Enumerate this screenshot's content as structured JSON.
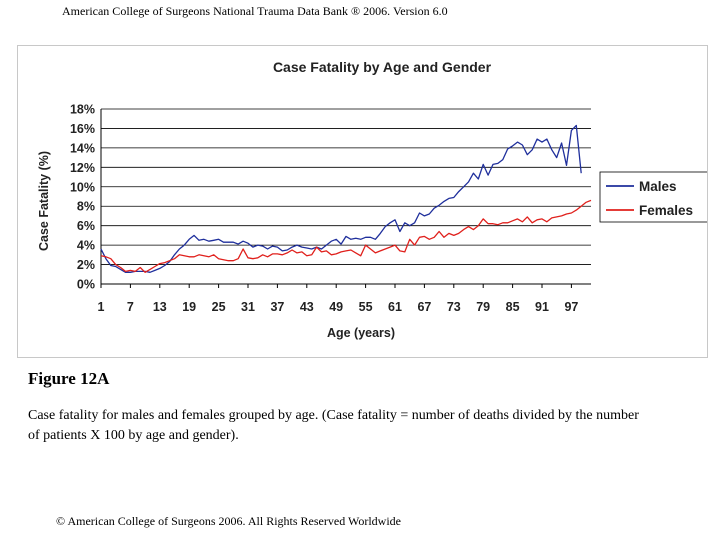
{
  "header": {
    "text": "American College of Surgeons National Trauma Data Bank ® 2006. Version 6.0"
  },
  "figure": {
    "title": "Figure 12A",
    "caption": "Case fatality for males and females grouped by age. (Case fatality = number of deaths divided by the number of patients X 100 by age and gender)."
  },
  "footer": {
    "text": "© American College of Surgeons 2006. All Rights Reserved Worldwide"
  },
  "colors": {
    "males": "#1f2f9c",
    "females": "#e0201c",
    "grid": "#000000"
  },
  "chart_data": {
    "type": "line",
    "title": "Case Fatality by Age and Gender",
    "xlabel": "Age (years)",
    "ylabel": "Case Fatality (%)",
    "ylim": [
      0,
      18
    ],
    "yticks": [
      0,
      2,
      4,
      6,
      8,
      10,
      12,
      14,
      16,
      18
    ],
    "ytick_labels": [
      "0%",
      "2%",
      "4%",
      "6%",
      "8%",
      "10%",
      "12%",
      "14%",
      "16%",
      "18%"
    ],
    "xlim": [
      1,
      101
    ],
    "xticks": [
      1,
      7,
      13,
      19,
      25,
      31,
      37,
      43,
      49,
      55,
      61,
      67,
      73,
      79,
      85,
      91,
      97
    ],
    "grid": "horizontal",
    "legend_position": "right",
    "series": [
      {
        "name": "Males",
        "x": [
          1,
          2,
          3,
          4,
          5,
          6,
          7,
          8,
          9,
          10,
          11,
          12,
          13,
          14,
          15,
          16,
          17,
          18,
          19,
          20,
          21,
          22,
          23,
          24,
          25,
          26,
          27,
          28,
          29,
          30,
          31,
          32,
          33,
          34,
          35,
          36,
          37,
          38,
          39,
          40,
          41,
          42,
          43,
          44,
          45,
          46,
          47,
          48,
          49,
          50,
          51,
          52,
          53,
          54,
          55,
          56,
          57,
          58,
          59,
          60,
          61,
          62,
          63,
          64,
          65,
          66,
          67,
          68,
          69,
          70,
          71,
          72,
          73,
          74,
          75,
          76,
          77,
          78,
          79,
          80,
          81,
          82,
          83,
          84,
          85,
          86,
          87,
          88,
          89,
          90,
          91,
          92,
          93,
          94,
          95,
          96,
          97,
          98,
          99
        ],
        "values": [
          3.6,
          2.6,
          1.9,
          1.8,
          1.5,
          1.2,
          1.2,
          1.3,
          1.3,
          1.3,
          1.2,
          1.4,
          1.6,
          1.9,
          2.3,
          3.0,
          3.6,
          4.0,
          4.6,
          5.0,
          4.5,
          4.6,
          4.4,
          4.5,
          4.6,
          4.3,
          4.3,
          4.3,
          4.1,
          4.4,
          4.2,
          3.8,
          4.0,
          3.9,
          3.6,
          3.9,
          3.8,
          3.4,
          3.5,
          3.8,
          4.0,
          3.8,
          3.7,
          3.6,
          3.8,
          3.6,
          4.0,
          4.4,
          4.6,
          4.1,
          4.9,
          4.6,
          4.7,
          4.6,
          4.8,
          4.8,
          4.6,
          5.2,
          5.9,
          6.3,
          6.6,
          5.4,
          6.3,
          6.0,
          6.3,
          7.3,
          7.0,
          7.2,
          7.8,
          8.1,
          8.5,
          8.8,
          8.9,
          9.5,
          10.0,
          10.5,
          11.4,
          10.8,
          12.3,
          11.2,
          12.3,
          12.4,
          12.8,
          13.9,
          14.2,
          14.6,
          14.3,
          13.3,
          13.8,
          14.9,
          14.6,
          14.9,
          13.8,
          13.0,
          14.5,
          12.2,
          15.8,
          16.3,
          11.4
        ]
      },
      {
        "name": "Females",
        "x": [
          1,
          2,
          3,
          4,
          5,
          6,
          7,
          8,
          9,
          10,
          11,
          12,
          13,
          14,
          15,
          16,
          17,
          18,
          19,
          20,
          21,
          22,
          23,
          24,
          25,
          26,
          27,
          28,
          29,
          30,
          31,
          32,
          33,
          34,
          35,
          36,
          37,
          38,
          39,
          40,
          41,
          42,
          43,
          44,
          45,
          46,
          47,
          48,
          49,
          50,
          51,
          52,
          53,
          54,
          55,
          56,
          57,
          58,
          59,
          60,
          61,
          62,
          63,
          64,
          65,
          66,
          67,
          68,
          69,
          70,
          71,
          72,
          73,
          74,
          75,
          76,
          77,
          78,
          79,
          80,
          81,
          82,
          83,
          84,
          85,
          86,
          87,
          88,
          89,
          90,
          91,
          92,
          93,
          94,
          95,
          96,
          97,
          98,
          99,
          100,
          101
        ],
        "values": [
          2.9,
          2.8,
          2.6,
          2.0,
          1.7,
          1.3,
          1.4,
          1.3,
          1.7,
          1.2,
          1.5,
          1.8,
          2.1,
          2.2,
          2.4,
          2.6,
          3.0,
          2.9,
          2.8,
          2.8,
          3.0,
          2.9,
          2.8,
          3.0,
          2.6,
          2.5,
          2.4,
          2.4,
          2.6,
          3.6,
          2.7,
          2.6,
          2.7,
          3.0,
          2.8,
          3.1,
          3.1,
          3.0,
          3.2,
          3.5,
          3.2,
          3.3,
          2.9,
          3.0,
          3.8,
          3.3,
          3.4,
          3.0,
          3.1,
          3.3,
          3.4,
          3.5,
          3.2,
          2.9,
          4.0,
          3.6,
          3.2,
          3.4,
          3.6,
          3.8,
          4.0,
          3.4,
          3.3,
          4.6,
          4.0,
          4.8,
          4.9,
          4.6,
          4.8,
          5.4,
          4.8,
          5.2,
          5.0,
          5.2,
          5.6,
          5.9,
          5.6,
          6.0,
          6.7,
          6.2,
          6.2,
          6.1,
          6.3,
          6.3,
          6.5,
          6.7,
          6.4,
          6.9,
          6.3,
          6.6,
          6.7,
          6.4,
          6.8,
          6.9,
          7.0,
          7.2,
          7.3,
          7.6,
          8.0,
          8.4,
          8.6
        ]
      }
    ]
  }
}
